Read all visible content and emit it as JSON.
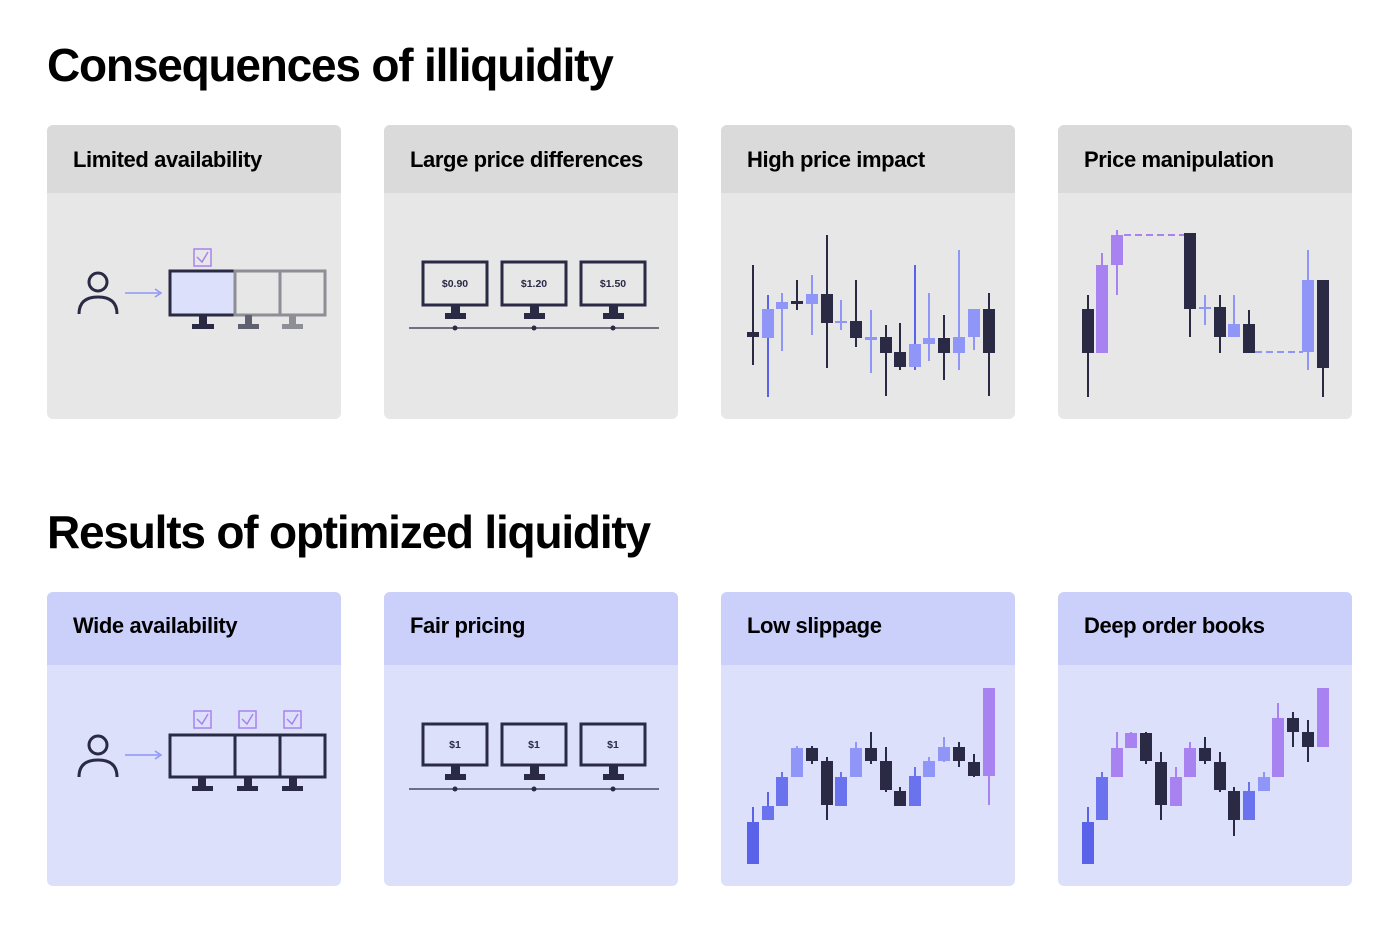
{
  "sections": [
    {
      "title": "Consequences of illiquidity",
      "cards": [
        {
          "title": "Limited availability",
          "diagram": "availability",
          "checked_screens": 1
        },
        {
          "title": "Large price differences",
          "diagram": "prices",
          "prices": [
            "$0.90",
            "$1.20",
            "$1.50"
          ]
        },
        {
          "title": "High price impact",
          "diagram": "volatile-candlesticks"
        },
        {
          "title": "Price manipulation",
          "diagram": "manipulated-candlesticks"
        }
      ]
    },
    {
      "title": "Results of optimized liquidity",
      "cards": [
        {
          "title": "Wide availability",
          "diagram": "availability",
          "checked_screens": 3
        },
        {
          "title": "Fair pricing",
          "diagram": "prices",
          "prices": [
            "$1",
            "$1",
            "$1"
          ]
        },
        {
          "title": "Low slippage",
          "diagram": "steady-candlesticks"
        },
        {
          "title": "Deep order books",
          "diagram": "steady-candlesticks"
        }
      ]
    }
  ],
  "colors": {
    "dark": "#2b2a45",
    "blue": "#5b62ea",
    "lavender": "#8f96f7",
    "violet": "#a882f1",
    "outline": "#8d8e96",
    "grey_card": "#e7e7e7",
    "purple_card": "#dde0fb"
  }
}
